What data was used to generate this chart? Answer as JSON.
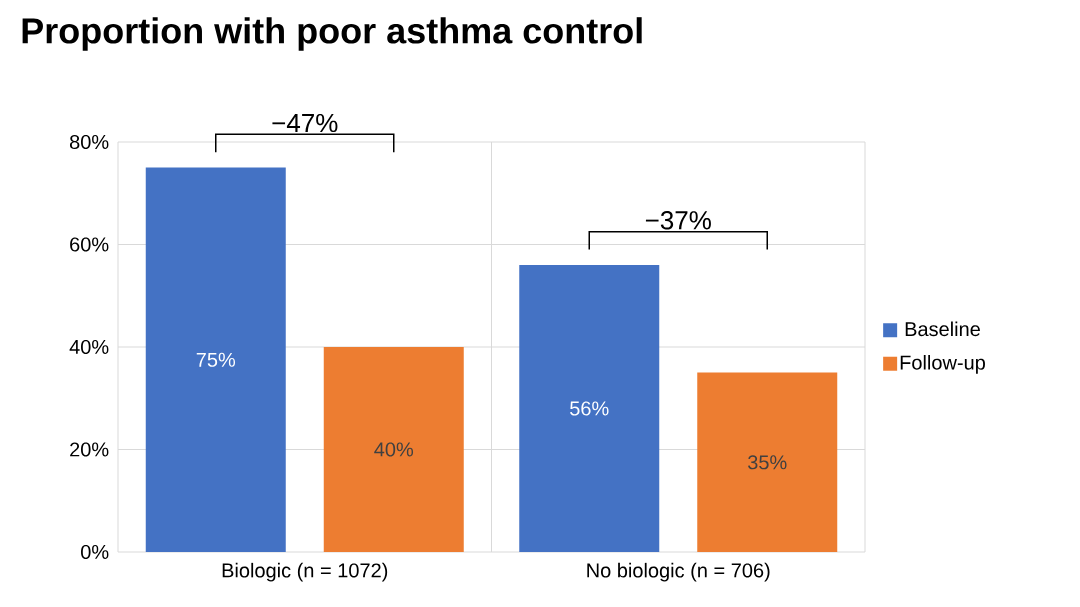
{
  "chart_data": {
    "type": "bar",
    "title": "Proportion with poor asthma control",
    "categories": [
      "Biologic (n = 1072)",
      "No biologic (n = 706)"
    ],
    "series": [
      {
        "name": "Baseline",
        "color": "#4472c4",
        "values": [
          75,
          56
        ],
        "value_labels": [
          "75%",
          "56%"
        ]
      },
      {
        "name": "Follow-up",
        "color": "#ed7d31",
        "values": [
          40,
          35
        ],
        "value_labels": [
          "40%",
          "35%"
        ]
      }
    ],
    "ylim": [
      0,
      80
    ],
    "yticks": [
      {
        "value": 0,
        "label": "0%"
      },
      {
        "value": 20,
        "label": "20%"
      },
      {
        "value": 40,
        "label": "40%"
      },
      {
        "value": 60,
        "label": "60%"
      },
      {
        "value": 80,
        "label": "80%"
      }
    ],
    "grid": true,
    "legend": "right",
    "annotations": [
      "−47%",
      "−37%"
    ]
  }
}
